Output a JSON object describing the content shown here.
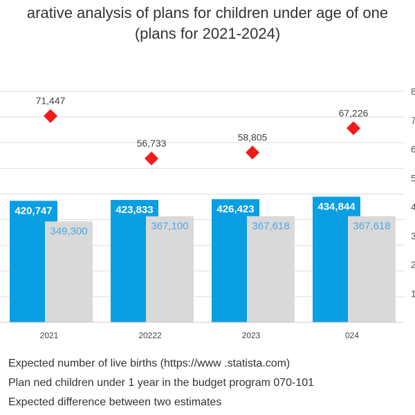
{
  "chart_data": {
    "type": "bar",
    "title": "arative analysis of plans for children under age of one",
    "subtitle": "(plans for 2021-2024)",
    "categories": [
      "2021",
      "20222",
      "2023",
      "024"
    ],
    "series": [
      {
        "name": "Expected number of live births (https://www .statista.com)",
        "kind": "bar",
        "color": "#0a9ee2",
        "values": [
          420747,
          423833,
          426423,
          434844
        ],
        "labels": [
          "420,747",
          "423,833",
          "426,423",
          "434,844"
        ],
        "label_color": "#ffffff"
      },
      {
        "name": "Plan ned children under 1 year in the budget program 070-101",
        "kind": "bar",
        "color": "#d9d9d9",
        "values": [
          349300,
          367100,
          367618,
          367618
        ],
        "labels": [
          "349,300",
          "367,100",
          "367,618",
          "367,618"
        ],
        "label_color": "#4aa6e6"
      },
      {
        "name": "Expected difference between two estimates",
        "kind": "marker",
        "color": "#f21b1b",
        "values": [
          71447,
          56733,
          58805,
          67226
        ],
        "labels": [
          "71,447",
          "56,733",
          "58,805",
          "67,226"
        ],
        "label_color": "#444444"
      }
    ],
    "ylim": [
      0,
      800000
    ],
    "y2lim": [
      0,
      80000
    ],
    "y2_ticks_visible": [
      "",
      "1",
      "2",
      "3",
      "4",
      "5",
      "6",
      "7",
      "8"
    ],
    "grid": true,
    "legend_position": "bottom-left"
  }
}
